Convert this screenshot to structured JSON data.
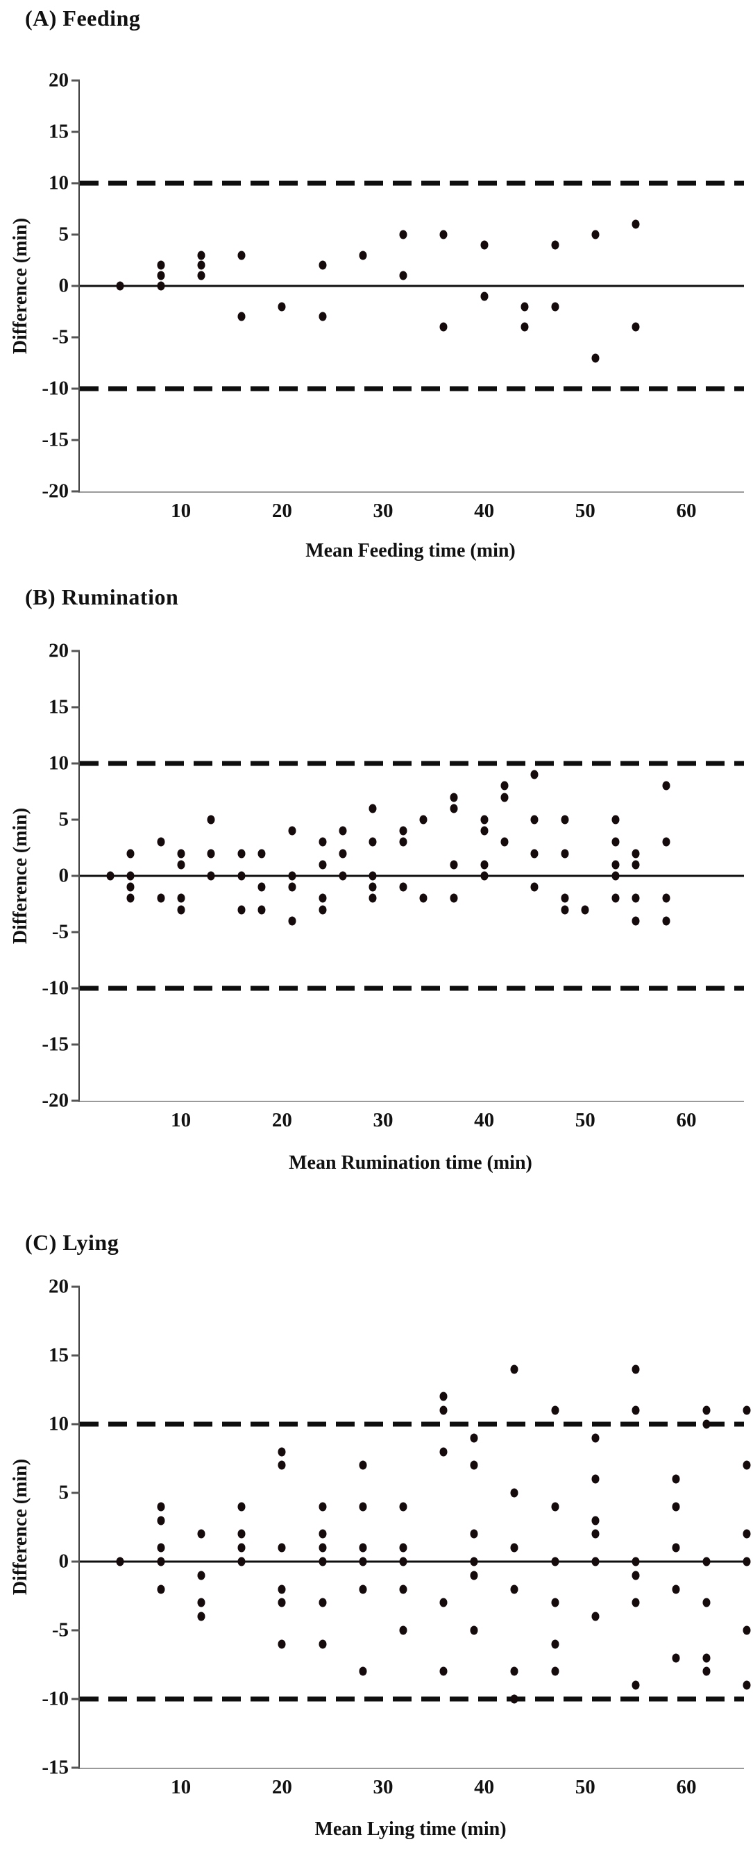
{
  "figure": {
    "background": "#ffffff"
  },
  "style": {
    "dot_color": "#150a0c",
    "line_color": "#0e0e0e",
    "y_axis_color": "#3d3d3d",
    "baseline_color": "#9a9a9a",
    "text_color": "#111111"
  },
  "chart_data": [
    {
      "type": "scatter",
      "title": "(A) Feeding",
      "xlabel": "Mean Feeding time (min)",
      "ylabel": "Difference (min)",
      "xlim": [
        0,
        65.7
      ],
      "ylim": [
        -20,
        20
      ],
      "xticks": [
        10,
        20,
        30,
        40,
        50,
        60
      ],
      "yticks": [
        20,
        15,
        10,
        5,
        0,
        -5,
        -10,
        -15,
        -20
      ],
      "grid": false,
      "legend": false,
      "mean_line": 0,
      "upper_limit": 10,
      "lower_limit": -10,
      "points": [
        [
          4,
          0
        ],
        [
          8,
          2
        ],
        [
          8,
          1
        ],
        [
          8,
          0
        ],
        [
          12,
          3
        ],
        [
          12,
          2
        ],
        [
          12,
          1
        ],
        [
          16,
          3
        ],
        [
          16,
          -3
        ],
        [
          20,
          -2
        ],
        [
          24,
          2
        ],
        [
          24,
          -3
        ],
        [
          28,
          3
        ],
        [
          32,
          5
        ],
        [
          32,
          1
        ],
        [
          36,
          5
        ],
        [
          36,
          -4
        ],
        [
          40,
          4
        ],
        [
          40,
          -1
        ],
        [
          44,
          -2
        ],
        [
          44,
          -4
        ],
        [
          47,
          4
        ],
        [
          47,
          -2
        ],
        [
          51,
          5
        ],
        [
          51,
          -7
        ],
        [
          55,
          6
        ],
        [
          55,
          -4
        ]
      ]
    },
    {
      "type": "scatter",
      "title": "(B) Rumination",
      "xlabel": "Mean Rumination time (min)",
      "ylabel": "Difference (min)",
      "xlim": [
        0,
        65.7
      ],
      "ylim": [
        -20,
        20
      ],
      "xticks": [
        10,
        20,
        30,
        40,
        50,
        60
      ],
      "yticks": [
        20,
        15,
        10,
        5,
        0,
        -5,
        -10,
        -15,
        -20
      ],
      "grid": false,
      "legend": false,
      "mean_line": 0,
      "upper_limit": 10,
      "lower_limit": -10,
      "points": [
        [
          3,
          0
        ],
        [
          5,
          2
        ],
        [
          5,
          0
        ],
        [
          5,
          -1
        ],
        [
          5,
          -2
        ],
        [
          8,
          3
        ],
        [
          8,
          -2
        ],
        [
          10,
          2
        ],
        [
          10,
          1
        ],
        [
          10,
          -2
        ],
        [
          10,
          -3
        ],
        [
          13,
          5
        ],
        [
          13,
          2
        ],
        [
          13,
          0
        ],
        [
          16,
          2
        ],
        [
          16,
          0
        ],
        [
          16,
          -3
        ],
        [
          18,
          2
        ],
        [
          18,
          -1
        ],
        [
          18,
          -3
        ],
        [
          21,
          4
        ],
        [
          21,
          0
        ],
        [
          21,
          -1
        ],
        [
          21,
          -4
        ],
        [
          24,
          3
        ],
        [
          24,
          1
        ],
        [
          24,
          -2
        ],
        [
          24,
          -3
        ],
        [
          26,
          4
        ],
        [
          26,
          2
        ],
        [
          26,
          0
        ],
        [
          29,
          6
        ],
        [
          29,
          3
        ],
        [
          29,
          0
        ],
        [
          29,
          -1
        ],
        [
          29,
          -2
        ],
        [
          32,
          4
        ],
        [
          32,
          3
        ],
        [
          32,
          -1
        ],
        [
          34,
          5
        ],
        [
          34,
          -2
        ],
        [
          37,
          7
        ],
        [
          37,
          6
        ],
        [
          37,
          1
        ],
        [
          37,
          -2
        ],
        [
          40,
          5
        ],
        [
          40,
          4
        ],
        [
          40,
          1
        ],
        [
          40,
          0
        ],
        [
          42,
          8
        ],
        [
          42,
          7
        ],
        [
          42,
          3
        ],
        [
          45,
          9
        ],
        [
          45,
          5
        ],
        [
          45,
          2
        ],
        [
          45,
          -1
        ],
        [
          48,
          5
        ],
        [
          48,
          2
        ],
        [
          48,
          -2
        ],
        [
          48,
          -3
        ],
        [
          50,
          -3
        ],
        [
          53,
          5
        ],
        [
          53,
          3
        ],
        [
          53,
          1
        ],
        [
          53,
          0
        ],
        [
          53,
          -2
        ],
        [
          55,
          2
        ],
        [
          55,
          1
        ],
        [
          55,
          -2
        ],
        [
          55,
          -4
        ],
        [
          58,
          8
        ],
        [
          58,
          3
        ],
        [
          58,
          -2
        ],
        [
          58,
          -4
        ]
      ]
    },
    {
      "type": "scatter",
      "title": "(C) Lying",
      "xlabel": "Mean Lying time (min)",
      "ylabel": "Difference (min)",
      "xlim": [
        0,
        65.7
      ],
      "ylim": [
        -15,
        20
      ],
      "xticks": [
        10,
        20,
        30,
        40,
        50,
        60
      ],
      "yticks": [
        20,
        15,
        10,
        5,
        0,
        -5,
        -10,
        -15
      ],
      "grid": false,
      "legend": false,
      "mean_line": 0,
      "upper_limit": 10,
      "lower_limit": -10,
      "points": [
        [
          4,
          0
        ],
        [
          8,
          4
        ],
        [
          8,
          3
        ],
        [
          8,
          1
        ],
        [
          8,
          0
        ],
        [
          8,
          -2
        ],
        [
          12,
          2
        ],
        [
          12,
          -1
        ],
        [
          12,
          -3
        ],
        [
          12,
          -4
        ],
        [
          16,
          4
        ],
        [
          16,
          2
        ],
        [
          16,
          1
        ],
        [
          16,
          0
        ],
        [
          20,
          8
        ],
        [
          20,
          7
        ],
        [
          20,
          1
        ],
        [
          20,
          -2
        ],
        [
          20,
          -3
        ],
        [
          20,
          -6
        ],
        [
          24,
          4
        ],
        [
          24,
          2
        ],
        [
          24,
          1
        ],
        [
          24,
          0
        ],
        [
          24,
          -3
        ],
        [
          24,
          -6
        ],
        [
          28,
          7
        ],
        [
          28,
          4
        ],
        [
          28,
          1
        ],
        [
          28,
          0
        ],
        [
          28,
          -2
        ],
        [
          28,
          -8
        ],
        [
          32,
          4
        ],
        [
          32,
          1
        ],
        [
          32,
          0
        ],
        [
          32,
          -2
        ],
        [
          32,
          -5
        ],
        [
          36,
          12
        ],
        [
          36,
          11
        ],
        [
          36,
          8
        ],
        [
          36,
          -3
        ],
        [
          36,
          -8
        ],
        [
          39,
          9
        ],
        [
          39,
          7
        ],
        [
          39,
          2
        ],
        [
          39,
          0
        ],
        [
          39,
          -1
        ],
        [
          39,
          -5
        ],
        [
          43,
          14
        ],
        [
          43,
          5
        ],
        [
          43,
          1
        ],
        [
          43,
          -2
        ],
        [
          43,
          -8
        ],
        [
          43,
          -10
        ],
        [
          47,
          11
        ],
        [
          47,
          4
        ],
        [
          47,
          0
        ],
        [
          47,
          -3
        ],
        [
          47,
          -6
        ],
        [
          47,
          -8
        ],
        [
          51,
          9
        ],
        [
          51,
          6
        ],
        [
          51,
          3
        ],
        [
          51,
          2
        ],
        [
          51,
          0
        ],
        [
          51,
          -4
        ],
        [
          55,
          14
        ],
        [
          55,
          11
        ],
        [
          55,
          0
        ],
        [
          55,
          -1
        ],
        [
          55,
          -3
        ],
        [
          55,
          -9
        ],
        [
          59,
          6
        ],
        [
          59,
          4
        ],
        [
          59,
          1
        ],
        [
          59,
          -2
        ],
        [
          59,
          -7
        ],
        [
          62,
          11
        ],
        [
          62,
          10
        ],
        [
          62,
          0
        ],
        [
          62,
          -3
        ],
        [
          62,
          -7
        ],
        [
          62,
          -8
        ],
        [
          66,
          11
        ],
        [
          66,
          7
        ],
        [
          66,
          2
        ],
        [
          66,
          0
        ],
        [
          66,
          -5
        ],
        [
          66,
          -9
        ]
      ]
    }
  ]
}
